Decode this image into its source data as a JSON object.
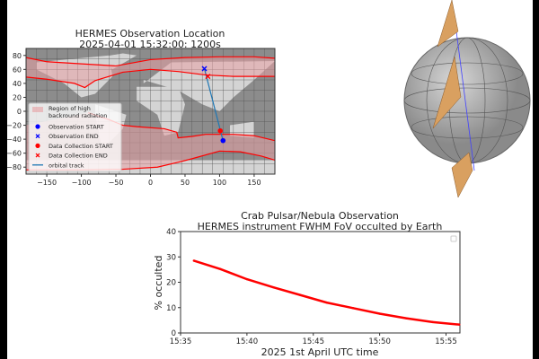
{
  "chart_data": [
    {
      "type": "scatter",
      "title": "HERMES Observation Location",
      "subtitle": "2025-04-01 15:32:00: 1200s",
      "xlim": [
        -180,
        180
      ],
      "ylim": [
        -90,
        90
      ],
      "xticks": [
        -150,
        -100,
        -50,
        0,
        50,
        100,
        150
      ],
      "yticks": [
        -80,
        -60,
        -40,
        -20,
        0,
        20,
        40,
        60,
        80
      ],
      "grid": true,
      "legend_position": "lower-left",
      "legend": [
        "Region of high\nbackround radiation",
        "Observation START",
        "Observation END",
        "Data Collection START",
        "Data Collection END",
        "orbital track"
      ],
      "legend_lines": [
        "Region of high",
        "backround radiation"
      ],
      "radiation_boundaries": [
        {
          "lon": [
            -180,
            -150,
            -100,
            -50,
            0,
            50,
            100,
            150,
            180
          ],
          "lat": [
            77,
            71,
            68,
            65,
            74,
            77,
            78,
            78,
            76
          ]
        },
        {
          "lon": [
            -180,
            -150,
            -110,
            -95,
            -80,
            -40,
            0,
            40,
            80,
            120,
            180
          ],
          "lat": [
            49,
            46,
            40,
            34,
            44,
            56,
            60,
            57,
            52,
            50,
            50
          ]
        },
        {
          "lon": [
            -90,
            -60,
            -40,
            -20,
            20,
            38,
            40,
            60,
            80,
            120,
            150,
            180
          ],
          "lat": [
            -2,
            -12,
            -20,
            -22,
            -25,
            -30,
            -38,
            -36,
            -33,
            -33,
            -35,
            -42
          ]
        },
        {
          "lon": [
            -180,
            -100,
            -40,
            10,
            40,
            60,
            100,
            130,
            160,
            180
          ],
          "lat": [
            -84,
            -84,
            -83,
            -80,
            -73,
            -68,
            -57,
            -58,
            -64,
            -70
          ]
        }
      ],
      "observation_start": {
        "lon": 105,
        "lat": -42
      },
      "observation_end": {
        "lon": 78,
        "lat": 61
      },
      "data_collection_start": {
        "lon": 101,
        "lat": -28
      },
      "data_collection_end": {
        "lon": 83,
        "lat": 50
      },
      "orbital_track": {
        "lon": [
          105,
          78
        ],
        "lat": [
          -42,
          61
        ]
      },
      "colors": {
        "region": "#e8a0a4",
        "boundary": "#ff0000",
        "observation": "#0000ff",
        "data_collection": "#ff0000",
        "track": "#1f77b4"
      }
    },
    {
      "type": "line",
      "title": "Crab Pulsar/Nebula Observation",
      "subtitle": "HERMES instrument FWHM FoV occulted by Earth",
      "xlabel": "2025 1st April UTC time",
      "ylabel": "% occulted",
      "xlim": [
        "15:35",
        "15:56"
      ],
      "ylim": [
        0,
        40
      ],
      "xticks": [
        "15:35",
        "15:40",
        "15:45",
        "15:50",
        "15:55"
      ],
      "yticks": [
        0,
        10,
        20,
        30,
        40
      ],
      "legend_position": "upper-right",
      "x": [
        "15:36",
        "15:38",
        "15:40",
        "15:42",
        "15:44",
        "15:46",
        "15:48",
        "15:50",
        "15:52",
        "15:54",
        "15:56"
      ],
      "y": [
        28.5,
        25.2,
        21.2,
        18.0,
        15.0,
        12.0,
        9.8,
        7.6,
        5.8,
        4.3,
        3.3
      ],
      "color": "#ff0000"
    }
  ]
}
